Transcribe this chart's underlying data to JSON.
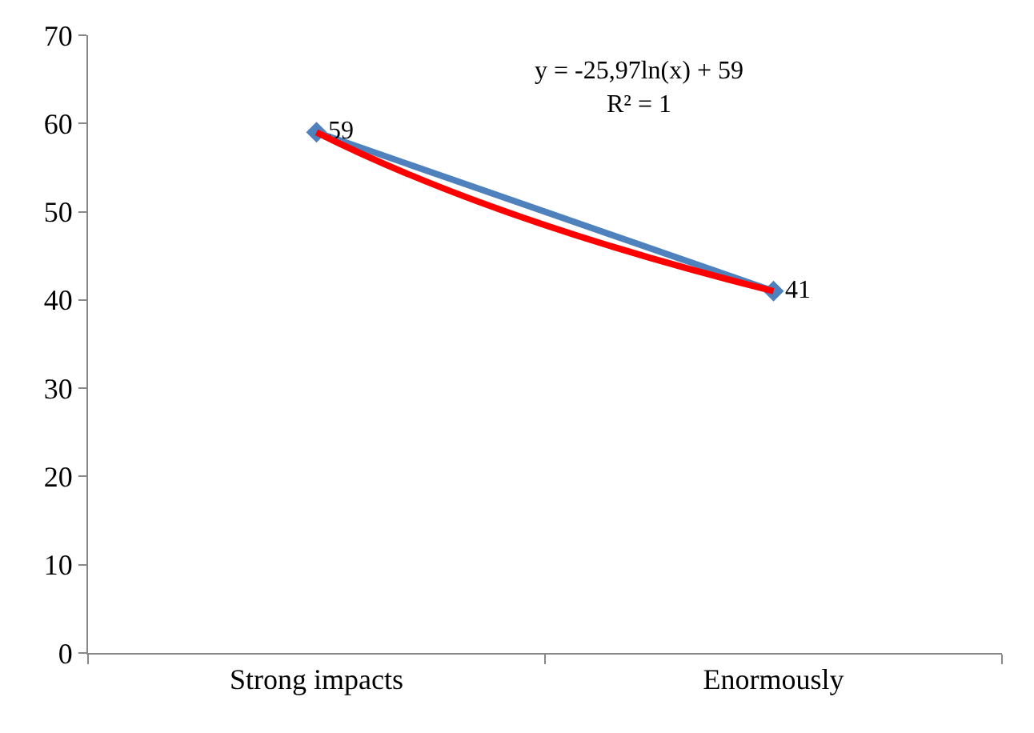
{
  "chart_data": {
    "type": "line",
    "categories": [
      "Strong impacts",
      "Enormously"
    ],
    "series": [
      {
        "color": "#4f81bd",
        "values": [
          59,
          41
        ],
        "marker": "diamond",
        "data_labels": true
      },
      {
        "type": "line",
        "color": "#ff0000",
        "values": [
          59,
          41
        ],
        "marker": "none"
      }
    ],
    "ylim": [
      0,
      70
    ],
    "yticks": [
      0,
      10,
      20,
      30,
      40,
      50,
      60,
      70
    ],
    "legend": false,
    "line_style": "solid",
    "annotations": [
      "y = -25,97ln(x) + 59\nR² = 1"
    ]
  }
}
